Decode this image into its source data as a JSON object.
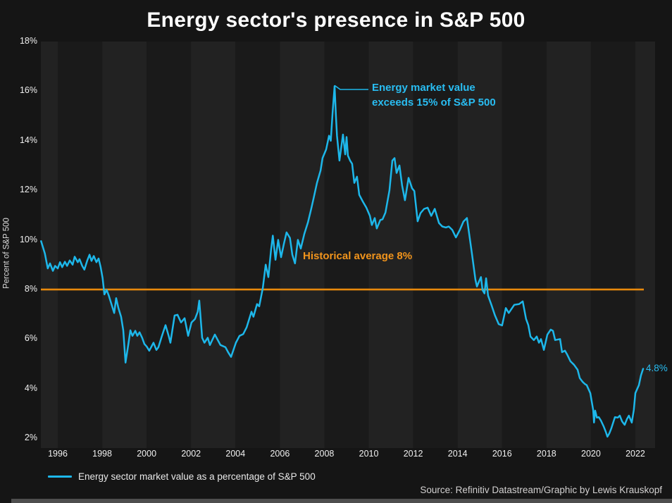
{
  "title": "Energy sector's presence in S&P 500",
  "colors": {
    "background": "#151515",
    "band_dark": "#1a1a1a",
    "band_light": "#222222",
    "line": "#1db7ea",
    "annotation_text": "#29bdf2",
    "average_line": "#e8890c",
    "average_text": "#f1941c",
    "title_text": "#ffffff",
    "tick_text": "#f0f0f0",
    "axis_title_text": "#dcdcdc",
    "legend_text": "#e8e8e8",
    "source_text": "#d2d0d0",
    "bottom_bar": "#4e4e4e"
  },
  "y_axis": {
    "title": "Percent of S&P 500",
    "tick_values": [
      18,
      16,
      14,
      12,
      10,
      8,
      6,
      4,
      2
    ],
    "tick_labels": [
      "18%",
      "16%",
      "14%",
      "12%",
      "10%",
      "8%",
      "6%",
      "4%",
      "2%"
    ]
  },
  "x_axis": {
    "tick_values": [
      1996,
      1998,
      2000,
      2002,
      2004,
      2006,
      2008,
      2010,
      2012,
      2014,
      2016,
      2018,
      2020,
      2022
    ],
    "tick_labels": [
      "1996",
      "1998",
      "2000",
      "2002",
      "2004",
      "2006",
      "2008",
      "2010",
      "2012",
      "2014",
      "2016",
      "2018",
      "2020",
      "2022"
    ]
  },
  "annotations": {
    "peak_line1": "Energy market value",
    "peak_line2": "exceeds 15% of S&P 500",
    "average_label": "Historical average 8%",
    "end_value_label": "4.8%"
  },
  "legend": {
    "series_label": "Energy sector market value as a percentage of S&P 500"
  },
  "source": "Source: Refinitiv Datastream/Graphic by Lewis Krauskopf",
  "chart_data": {
    "type": "line",
    "title": "Energy sector's presence in S&P 500",
    "xlabel": "",
    "ylabel": "Percent of S&P 500",
    "ylim": [
      2,
      18
    ],
    "xlim": [
      1995.25,
      2022.6
    ],
    "grid": false,
    "legend_position": "bottom-left",
    "average_line": {
      "value": 8,
      "label": "Historical average 8%"
    },
    "peak": {
      "x": 2008.46,
      "value": 16.2,
      "label": "Energy market value exceeds 15% of S&P 500"
    },
    "last_point": {
      "x": 2022.35,
      "value": 4.8,
      "label": "4.8%"
    },
    "series": [
      {
        "name": "Energy sector market value as a percentage of S&P 500",
        "points": [
          [
            1995.25,
            9.95
          ],
          [
            1995.42,
            9.45
          ],
          [
            1995.55,
            8.85
          ],
          [
            1995.65,
            9.05
          ],
          [
            1995.78,
            8.75
          ],
          [
            1995.88,
            8.95
          ],
          [
            1996.0,
            8.85
          ],
          [
            1996.1,
            9.1
          ],
          [
            1996.2,
            8.9
          ],
          [
            1996.32,
            9.12
          ],
          [
            1996.42,
            8.95
          ],
          [
            1996.54,
            9.17
          ],
          [
            1996.67,
            9.0
          ],
          [
            1996.76,
            9.32
          ],
          [
            1996.9,
            9.1
          ],
          [
            1996.98,
            9.22
          ],
          [
            1997.1,
            8.95
          ],
          [
            1997.2,
            8.8
          ],
          [
            1997.33,
            9.17
          ],
          [
            1997.43,
            9.4
          ],
          [
            1997.52,
            9.15
          ],
          [
            1997.62,
            9.35
          ],
          [
            1997.74,
            9.1
          ],
          [
            1997.84,
            9.25
          ],
          [
            1997.93,
            8.9
          ],
          [
            1998.02,
            8.45
          ],
          [
            1998.1,
            7.8
          ],
          [
            1998.2,
            7.98
          ],
          [
            1998.3,
            7.75
          ],
          [
            1998.42,
            7.4
          ],
          [
            1998.54,
            7.05
          ],
          [
            1998.63,
            7.65
          ],
          [
            1998.73,
            7.25
          ],
          [
            1998.85,
            6.9
          ],
          [
            1998.95,
            6.35
          ],
          [
            1999.05,
            5.05
          ],
          [
            1999.17,
            5.75
          ],
          [
            1999.27,
            6.35
          ],
          [
            1999.36,
            6.13
          ],
          [
            1999.49,
            6.33
          ],
          [
            1999.58,
            6.13
          ],
          [
            1999.68,
            6.27
          ],
          [
            1999.8,
            6.05
          ],
          [
            1999.9,
            5.8
          ],
          [
            2000.0,
            5.7
          ],
          [
            2000.12,
            5.53
          ],
          [
            2000.22,
            5.7
          ],
          [
            2000.31,
            5.85
          ],
          [
            2000.44,
            5.56
          ],
          [
            2000.53,
            5.67
          ],
          [
            2000.68,
            6.1
          ],
          [
            2000.85,
            6.56
          ],
          [
            2001.0,
            6.1
          ],
          [
            2001.07,
            5.85
          ],
          [
            2001.26,
            6.95
          ],
          [
            2001.39,
            6.98
          ],
          [
            2001.55,
            6.67
          ],
          [
            2001.71,
            6.84
          ],
          [
            2001.87,
            6.13
          ],
          [
            2002.02,
            6.67
          ],
          [
            2002.18,
            6.81
          ],
          [
            2002.3,
            7.1
          ],
          [
            2002.37,
            7.55
          ],
          [
            2002.5,
            6.05
          ],
          [
            2002.6,
            5.85
          ],
          [
            2002.75,
            6.05
          ],
          [
            2002.85,
            5.76
          ],
          [
            2003.07,
            6.18
          ],
          [
            2003.32,
            5.76
          ],
          [
            2003.55,
            5.67
          ],
          [
            2003.68,
            5.45
          ],
          [
            2003.8,
            5.28
          ],
          [
            2004.02,
            5.85
          ],
          [
            2004.18,
            6.13
          ],
          [
            2004.35,
            6.2
          ],
          [
            2004.5,
            6.47
          ],
          [
            2004.72,
            7.1
          ],
          [
            2004.81,
            6.9
          ],
          [
            2004.97,
            7.41
          ],
          [
            2005.07,
            7.32
          ],
          [
            2005.23,
            8.06
          ],
          [
            2005.36,
            9.0
          ],
          [
            2005.48,
            8.5
          ],
          [
            2005.6,
            9.6
          ],
          [
            2005.68,
            10.17
          ],
          [
            2005.8,
            9.2
          ],
          [
            2005.92,
            10.0
          ],
          [
            2006.05,
            9.3
          ],
          [
            2006.18,
            9.85
          ],
          [
            2006.3,
            10.3
          ],
          [
            2006.45,
            10.08
          ],
          [
            2006.56,
            9.4
          ],
          [
            2006.68,
            9.05
          ],
          [
            2006.81,
            10.0
          ],
          [
            2006.94,
            9.65
          ],
          [
            2007.1,
            10.25
          ],
          [
            2007.26,
            10.7
          ],
          [
            2007.41,
            11.25
          ],
          [
            2007.51,
            11.65
          ],
          [
            2007.67,
            12.3
          ],
          [
            2007.83,
            12.8
          ],
          [
            2007.92,
            13.3
          ],
          [
            2008.08,
            13.65
          ],
          [
            2008.21,
            14.2
          ],
          [
            2008.29,
            14.0
          ],
          [
            2008.37,
            15.1
          ],
          [
            2008.46,
            16.2
          ],
          [
            2008.52,
            15.0
          ],
          [
            2008.57,
            14.2
          ],
          [
            2008.68,
            13.2
          ],
          [
            2008.84,
            14.25
          ],
          [
            2008.94,
            13.45
          ],
          [
            2009.0,
            14.15
          ],
          [
            2009.06,
            13.4
          ],
          [
            2009.16,
            13.2
          ],
          [
            2009.25,
            13.07
          ],
          [
            2009.35,
            12.3
          ],
          [
            2009.47,
            12.55
          ],
          [
            2009.57,
            11.82
          ],
          [
            2009.73,
            11.55
          ],
          [
            2009.89,
            11.3
          ],
          [
            2010.05,
            10.97
          ],
          [
            2010.14,
            10.6
          ],
          [
            2010.27,
            10.88
          ],
          [
            2010.36,
            10.46
          ],
          [
            2010.52,
            10.8
          ],
          [
            2010.62,
            10.83
          ],
          [
            2010.75,
            11.1
          ],
          [
            2010.93,
            12.0
          ],
          [
            2011.06,
            13.2
          ],
          [
            2011.16,
            13.3
          ],
          [
            2011.25,
            12.7
          ],
          [
            2011.38,
            13.0
          ],
          [
            2011.5,
            12.2
          ],
          [
            2011.63,
            11.6
          ],
          [
            2011.79,
            12.5
          ],
          [
            2011.95,
            12.08
          ],
          [
            2012.05,
            11.97
          ],
          [
            2012.2,
            10.75
          ],
          [
            2012.33,
            11.08
          ],
          [
            2012.49,
            11.25
          ],
          [
            2012.65,
            11.3
          ],
          [
            2012.81,
            10.97
          ],
          [
            2012.97,
            11.25
          ],
          [
            2013.16,
            10.68
          ],
          [
            2013.31,
            10.54
          ],
          [
            2013.47,
            10.5
          ],
          [
            2013.6,
            10.54
          ],
          [
            2013.76,
            10.4
          ],
          [
            2013.92,
            10.1
          ],
          [
            2014.1,
            10.4
          ],
          [
            2014.26,
            10.74
          ],
          [
            2014.42,
            10.88
          ],
          [
            2014.64,
            9.46
          ],
          [
            2014.8,
            8.4
          ],
          [
            2014.87,
            8.12
          ],
          [
            2014.96,
            8.32
          ],
          [
            2015.05,
            8.5
          ],
          [
            2015.12,
            7.98
          ],
          [
            2015.21,
            7.84
          ],
          [
            2015.28,
            8.45
          ],
          [
            2015.37,
            7.75
          ],
          [
            2015.52,
            7.38
          ],
          [
            2015.68,
            6.95
          ],
          [
            2015.85,
            6.6
          ],
          [
            2016.0,
            6.55
          ],
          [
            2016.17,
            7.25
          ],
          [
            2016.3,
            7.05
          ],
          [
            2016.55,
            7.38
          ],
          [
            2016.77,
            7.41
          ],
          [
            2016.93,
            7.52
          ],
          [
            2017.08,
            6.81
          ],
          [
            2017.18,
            6.56
          ],
          [
            2017.28,
            6.1
          ],
          [
            2017.43,
            5.96
          ],
          [
            2017.56,
            6.1
          ],
          [
            2017.66,
            5.85
          ],
          [
            2017.75,
            6.0
          ],
          [
            2017.88,
            5.56
          ],
          [
            2018.04,
            6.18
          ],
          [
            2018.19,
            6.38
          ],
          [
            2018.29,
            6.33
          ],
          [
            2018.39,
            5.96
          ],
          [
            2018.61,
            6.0
          ],
          [
            2018.7,
            5.47
          ],
          [
            2018.83,
            5.53
          ],
          [
            2018.92,
            5.39
          ],
          [
            2019.08,
            5.1
          ],
          [
            2019.24,
            4.96
          ],
          [
            2019.4,
            4.76
          ],
          [
            2019.5,
            4.42
          ],
          [
            2019.62,
            4.28
          ],
          [
            2019.72,
            4.19
          ],
          [
            2019.81,
            4.14
          ],
          [
            2019.97,
            3.82
          ],
          [
            2020.1,
            3.14
          ],
          [
            2020.14,
            2.63
          ],
          [
            2020.19,
            3.11
          ],
          [
            2020.27,
            2.83
          ],
          [
            2020.35,
            2.85
          ],
          [
            2020.45,
            2.71
          ],
          [
            2020.57,
            2.48
          ],
          [
            2020.67,
            2.26
          ],
          [
            2020.74,
            2.06
          ],
          [
            2020.83,
            2.2
          ],
          [
            2020.92,
            2.4
          ],
          [
            2021.08,
            2.85
          ],
          [
            2021.21,
            2.83
          ],
          [
            2021.3,
            2.91
          ],
          [
            2021.4,
            2.68
          ],
          [
            2021.52,
            2.54
          ],
          [
            2021.62,
            2.77
          ],
          [
            2021.71,
            2.91
          ],
          [
            2021.84,
            2.63
          ],
          [
            2021.93,
            3.14
          ],
          [
            2022.0,
            3.82
          ],
          [
            2022.09,
            4.0
          ],
          [
            2022.16,
            4.14
          ],
          [
            2022.25,
            4.53
          ],
          [
            2022.35,
            4.8
          ]
        ]
      }
    ]
  }
}
